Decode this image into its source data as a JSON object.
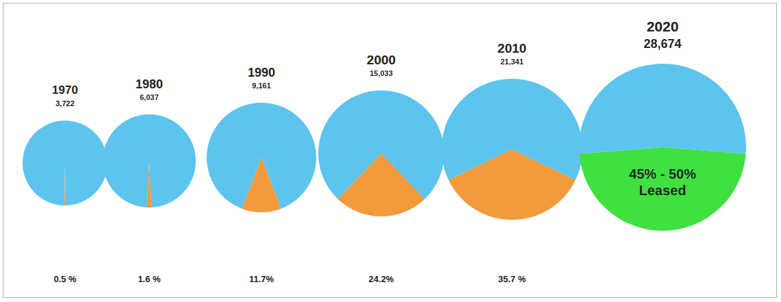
{
  "chart_data": [
    {
      "type": "pie",
      "title": "1970",
      "subtitle": "3,722",
      "categories": [
        null,
        null
      ],
      "values": [
        0.5,
        99.5
      ],
      "colors": [
        "#f39a3c",
        "#5cc4ee"
      ],
      "annotations": [
        "0.5 %"
      ]
    },
    {
      "type": "pie",
      "title": "1980",
      "subtitle": "6,037",
      "categories": [
        null,
        null
      ],
      "values": [
        1.6,
        98.4
      ],
      "colors": [
        "#f39a3c",
        "#5cc4ee"
      ],
      "annotations": [
        "1.6 %"
      ]
    },
    {
      "type": "pie",
      "title": "1990",
      "subtitle": "9,161",
      "categories": [
        null,
        null
      ],
      "values": [
        11.7,
        88.3
      ],
      "colors": [
        "#f39a3c",
        "#5cc4ee"
      ],
      "annotations": [
        "11.7%"
      ]
    },
    {
      "type": "pie",
      "title": "2000",
      "subtitle": "15,033",
      "categories": [
        null,
        null
      ],
      "values": [
        24.2,
        75.8
      ],
      "colors": [
        "#f39a3c",
        "#5cc4ee"
      ],
      "annotations": [
        "24.2%"
      ]
    },
    {
      "type": "pie",
      "title": "2010",
      "subtitle": "21,341",
      "categories": [
        null,
        null
      ],
      "values": [
        35.7,
        64.3
      ],
      "colors": [
        "#f39a3c",
        "#5cc4ee"
      ],
      "annotations": [
        "35.7 %"
      ]
    },
    {
      "type": "pie",
      "title": "2020",
      "subtitle": "28,674",
      "categories": [
        null,
        null
      ],
      "values": [
        47.5,
        52.5
      ],
      "colors": [
        "#3fe03f",
        "#5cc4ee"
      ],
      "annotations": [
        "45% - 50% Leased"
      ]
    }
  ]
}
